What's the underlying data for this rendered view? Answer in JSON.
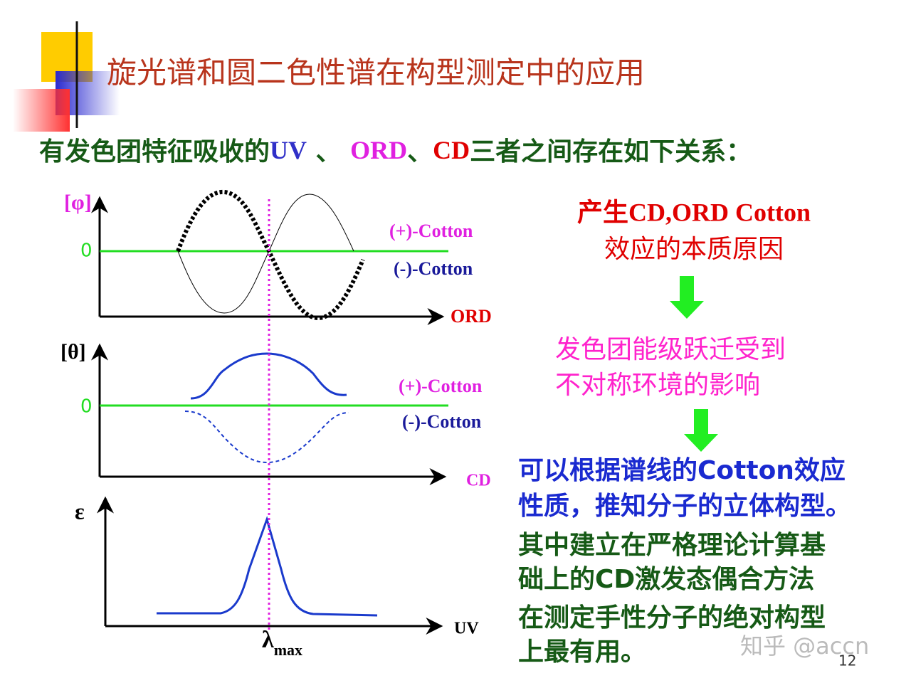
{
  "title": "旋光谱和圆二色性谱在构型测定中的应用",
  "intro": {
    "prefix": "有发色团特征吸收的",
    "uv": "UV",
    "sep1": " 、 ",
    "ord": "ORD",
    "sep2": "、",
    "cd": "CD",
    "suffix": "三者之间存在如下关系："
  },
  "panels": {
    "ord": {
      "y_label": "[φ]",
      "zero": "0",
      "plus": "(+)-Cotton",
      "minus": "(-)-Cotton",
      "x_label": "ORD"
    },
    "cd": {
      "y_label": "[θ]",
      "zero": "0",
      "plus": "(+)-Cotton",
      "minus": "(-)-Cotton",
      "x_label": "CD"
    },
    "uv": {
      "y_label": "ε",
      "x_label": "UV"
    }
  },
  "lambda": {
    "symbol": "λ",
    "subscript": "max"
  },
  "flow": {
    "cause": [
      "产生CD,ORD Cotton",
      "效应的本质原因"
    ],
    "mechanism": [
      "发色团能级跃迁受到",
      "不对称环境的影响"
    ],
    "application": [
      "可以根据谱线的Cotton效应",
      "性质，推知分子的立体构型。"
    ],
    "note": [
      "其中建立在严格理论计算基",
      "础上的CD激发态偶合方法",
      "在测定手性分子的绝对构型",
      "上最有用。"
    ]
  },
  "watermark": "知乎 @accn",
  "page_number": "12"
}
